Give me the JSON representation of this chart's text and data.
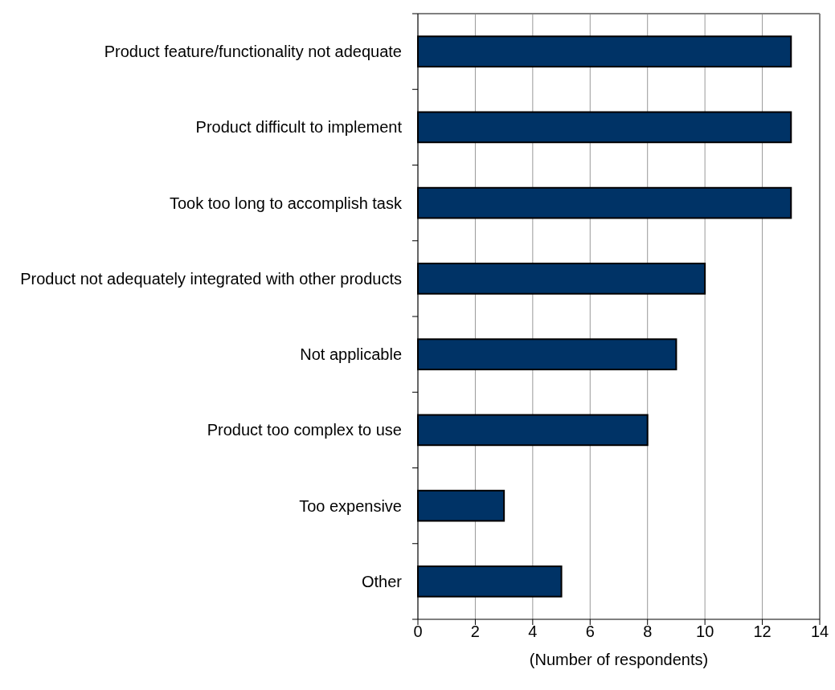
{
  "chart_data": {
    "type": "bar",
    "orientation": "horizontal",
    "xlabel": "(Number of respondents)",
    "categories": [
      "Product feature/functionality not adequate",
      "Product difficult to implement",
      "Took too long to accomplish task",
      "Product not adequately integrated with other products",
      "Not applicable",
      "Product too complex to use",
      "Too expensive",
      "Other"
    ],
    "values": [
      13,
      13,
      13,
      10,
      9,
      8,
      3,
      5
    ],
    "color": "#003366",
    "xlim": [
      0,
      14
    ],
    "xticks": [
      0,
      2,
      4,
      6,
      8,
      10,
      12,
      14
    ],
    "grid": "x"
  }
}
